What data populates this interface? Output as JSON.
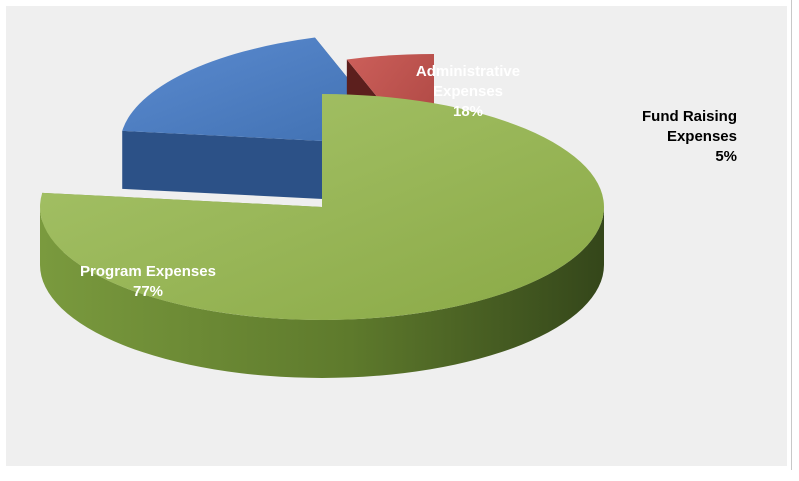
{
  "chart_data": {
    "type": "pie",
    "style": "3d-exploded",
    "title": "",
    "slices": [
      {
        "name": "Program Expenses",
        "value": 77,
        "label": "Program Expenses",
        "percent": "77%",
        "color": "#92b050"
      },
      {
        "name": "Administrative Expenses",
        "value": 18,
        "label": "Administrative Expenses",
        "percent": "18%",
        "color": "#4f7fbf"
      },
      {
        "name": "Fund Raising Expenses",
        "value": 5,
        "label": "Fund Raising Expenses",
        "percent": "5%",
        "color": "#c0504d"
      }
    ],
    "legend": "none"
  }
}
